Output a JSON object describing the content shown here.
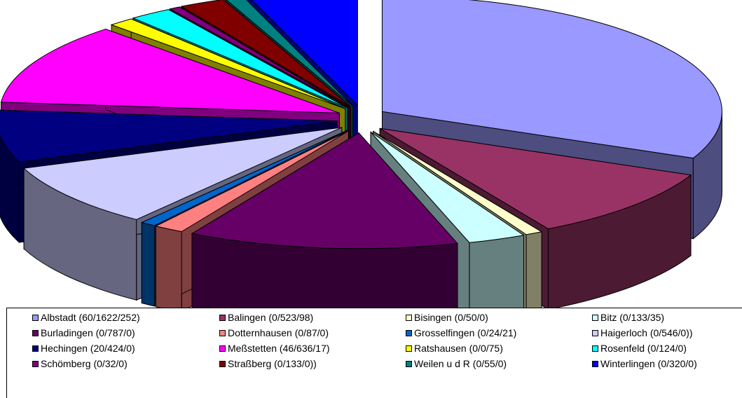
{
  "chart_data": {
    "type": "pie",
    "style": "3d-exploded",
    "legend_position": "bottom",
    "slices": [
      {
        "label": "Albstadt (60/1622/252)",
        "value": 1934,
        "color": "#9999ff"
      },
      {
        "label": "Balingen (0/523/98)",
        "value": 621,
        "color": "#993366"
      },
      {
        "label": "Bisingen (0/50/0)",
        "value": 50,
        "color": "#ffffcc"
      },
      {
        "label": "Bitz (0/133/35)",
        "value": 168,
        "color": "#ccffff"
      },
      {
        "label": "Burladingen (0/787/0)",
        "value": 787,
        "color": "#660066"
      },
      {
        "label": "Dotternhausen (0/87/0)",
        "value": 87,
        "color": "#ff8080"
      },
      {
        "label": "Grosselfingen (0/24/21)",
        "value": 45,
        "color": "#0066cc"
      },
      {
        "label": "Haigerloch (0/546/0))",
        "value": 546,
        "color": "#ccccff"
      },
      {
        "label": "Hechingen (20/424/0)",
        "value": 444,
        "color": "#000080"
      },
      {
        "label": "Meßstetten (46/636/17)",
        "value": 699,
        "color": "#ff00ff"
      },
      {
        "label": "Ratshausen (0/0/75)",
        "value": 75,
        "color": "#ffff00"
      },
      {
        "label": "Rosenfeld (0/124/0)",
        "value": 124,
        "color": "#00ffff"
      },
      {
        "label": "Schömberg (0/32/0)",
        "value": 32,
        "color": "#800080"
      },
      {
        "label": "Straßberg (0/133/0))",
        "value": 133,
        "color": "#800000"
      },
      {
        "label": "Weilen u d R (0/55/0)",
        "value": 55,
        "color": "#008080"
      },
      {
        "label": "Winterlingen (0/320/0)",
        "value": 320,
        "color": "#0000ff"
      }
    ]
  }
}
